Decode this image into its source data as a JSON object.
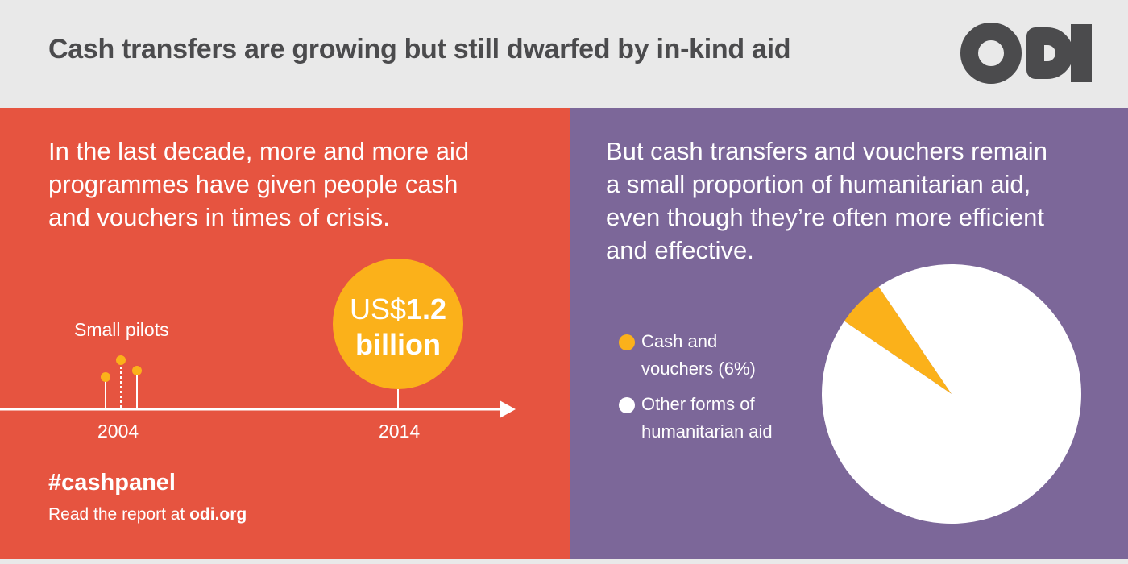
{
  "header": {
    "title": "Cash transfers are growing but still dwarfed by in-kind aid",
    "logo_text": "odi"
  },
  "left_panel": {
    "lead_lines": [
      "In the last decade, more and more aid",
      "programmes have given people cash",
      "and vouchers in times of crisis."
    ],
    "annotation": "Small pilots",
    "years": [
      "2004",
      "2014"
    ],
    "highlight": {
      "prefix": "US$",
      "value": "1.2",
      "unit": "billion"
    },
    "hashtag": "#cashpanel",
    "read_prefix": "Read the report at ",
    "read_url": "odi.org"
  },
  "right_panel": {
    "lead_lines": [
      "But cash transfers and vouchers remain",
      "a small proportion of humanitarian aid,",
      "even though they’re often more efficient",
      "and effective."
    ],
    "legend": [
      {
        "lines": [
          "Cash and",
          "vouchers (6%)"
        ],
        "color": "#fbb11a"
      },
      {
        "lines": [
          "Other forms of",
          "humanitarian aid"
        ],
        "color": "#ffffff"
      }
    ]
  },
  "colors": {
    "orange_red": "#e65440",
    "purple": "#7c6799",
    "yellow": "#fbb11a",
    "header_bg": "#e9e9e9",
    "title_text": "#4b4b4d"
  },
  "chart_data": [
    {
      "type": "pie",
      "categories": [
        "Cash and vouchers",
        "Other forms of humanitarian aid"
      ],
      "values": [
        6,
        94
      ],
      "colors": [
        "#fbb11a",
        "#ffffff"
      ],
      "legend_position": "left"
    },
    {
      "type": "timeline",
      "x": [
        "2004",
        "2014"
      ],
      "annotations": [
        {
          "x": "2004",
          "text": "Small pilots"
        },
        {
          "x": "2014",
          "text": "US$1.2 billion"
        }
      ]
    }
  ]
}
